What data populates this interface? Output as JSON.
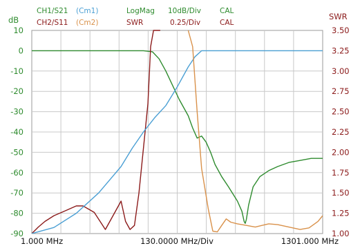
{
  "header": {
    "ch1": "CH1/S21",
    "ch1_memory": "(Cm1)",
    "ch1_format": "LogMag",
    "ch1_scale": "10dB/Div",
    "ch1_cal": "CAL",
    "ch2": "CH2/S11",
    "ch2_memory": "(Cm2)",
    "ch2_format": "SWR",
    "ch2_scale": "0.25/Div",
    "ch2_cal": "CAL"
  },
  "colors": {
    "ch1": "#2e8b2e",
    "ch2": "#8b1a1a",
    "cm1": "#4a9fd4",
    "cm2": "#d9914a",
    "grid": "#c8c8c8",
    "frame": "#9a9a9a"
  },
  "chart_data": {
    "type": "line",
    "grid": true,
    "x_axis": {
      "range": [
        1.0,
        1301.0
      ],
      "unit": "MHz",
      "tick_labels": [
        "1.000 MHz",
        "130.0000 MHz/Div",
        "1301.000 MHz"
      ]
    },
    "left_axis": {
      "unit_label": "dB",
      "range": [
        -90,
        10
      ],
      "ticks": [
        10,
        0,
        -10,
        -20,
        -30,
        -40,
        -50,
        -60,
        -70,
        -80,
        -90
      ]
    },
    "right_axis": {
      "unit_label": "SWR",
      "range": [
        1.0,
        3.5
      ],
      "ticks": [
        "3.50",
        "3.25",
        "3.00",
        "2.75",
        "2.50",
        "2.25",
        "2.00",
        "1.75",
        "1.50",
        "1.25",
        "1.00"
      ]
    },
    "series": [
      {
        "name": "CH1/S21",
        "axis": "left",
        "color": "#2e8b2e",
        "x": [
          1,
          100,
          200,
          400,
          500,
          540,
          570,
          600,
          630,
          660,
          700,
          720,
          740,
          760,
          780,
          800,
          820,
          850,
          880,
          920,
          940,
          950,
          955,
          960,
          970,
          990,
          1020,
          1060,
          1100,
          1150,
          1200,
          1250,
          1301
        ],
        "y": [
          0,
          0,
          0,
          0,
          0,
          -0.5,
          -4,
          -10,
          -17,
          -24,
          -32,
          -38,
          -43,
          -42,
          -45,
          -50,
          -56,
          -62,
          -67,
          -74,
          -79,
          -84,
          -85,
          -83,
          -76,
          -67,
          -62,
          -59,
          -57,
          -55,
          -54,
          -53,
          -53
        ]
      },
      {
        "name": "CH2/S11",
        "axis": "right",
        "color": "#8b1a1a",
        "x": [
          1,
          30,
          60,
          100,
          150,
          200,
          230,
          280,
          330,
          370,
          400,
          420,
          440,
          460,
          480,
          520,
          532,
          545,
          560,
          575
        ],
        "y": [
          1.0,
          1.08,
          1.15,
          1.22,
          1.28,
          1.34,
          1.34,
          1.26,
          1.05,
          1.25,
          1.4,
          1.15,
          1.05,
          1.1,
          1.5,
          2.6,
          3.3,
          3.5,
          3.5,
          3.5
        ]
      },
      {
        "name": "Cm1",
        "axis": "left",
        "color": "#4a9fd4",
        "x": [
          1,
          100,
          200,
          300,
          400,
          450,
          500,
          550,
          600,
          650,
          700,
          730,
          760,
          800,
          900,
          1000,
          1100,
          1200,
          1301
        ],
        "y": [
          -90,
          -87,
          -80,
          -70,
          -57,
          -48,
          -40,
          -33,
          -27,
          -18,
          -8,
          -3,
          0,
          0,
          0,
          0,
          0,
          0,
          0
        ]
      },
      {
        "name": "Cm2",
        "axis": "right",
        "color": "#d9914a",
        "x": [
          700,
          720,
          740,
          760,
          790,
          810,
          830,
          850,
          870,
          890,
          920,
          960,
          1000,
          1030,
          1060,
          1100,
          1150,
          1200,
          1240,
          1280,
          1301
        ],
        "y": [
          3.5,
          3.3,
          2.5,
          1.8,
          1.3,
          1.03,
          1.02,
          1.1,
          1.18,
          1.14,
          1.12,
          1.1,
          1.08,
          1.1,
          1.12,
          1.11,
          1.08,
          1.05,
          1.07,
          1.15,
          1.22
        ]
      }
    ]
  }
}
